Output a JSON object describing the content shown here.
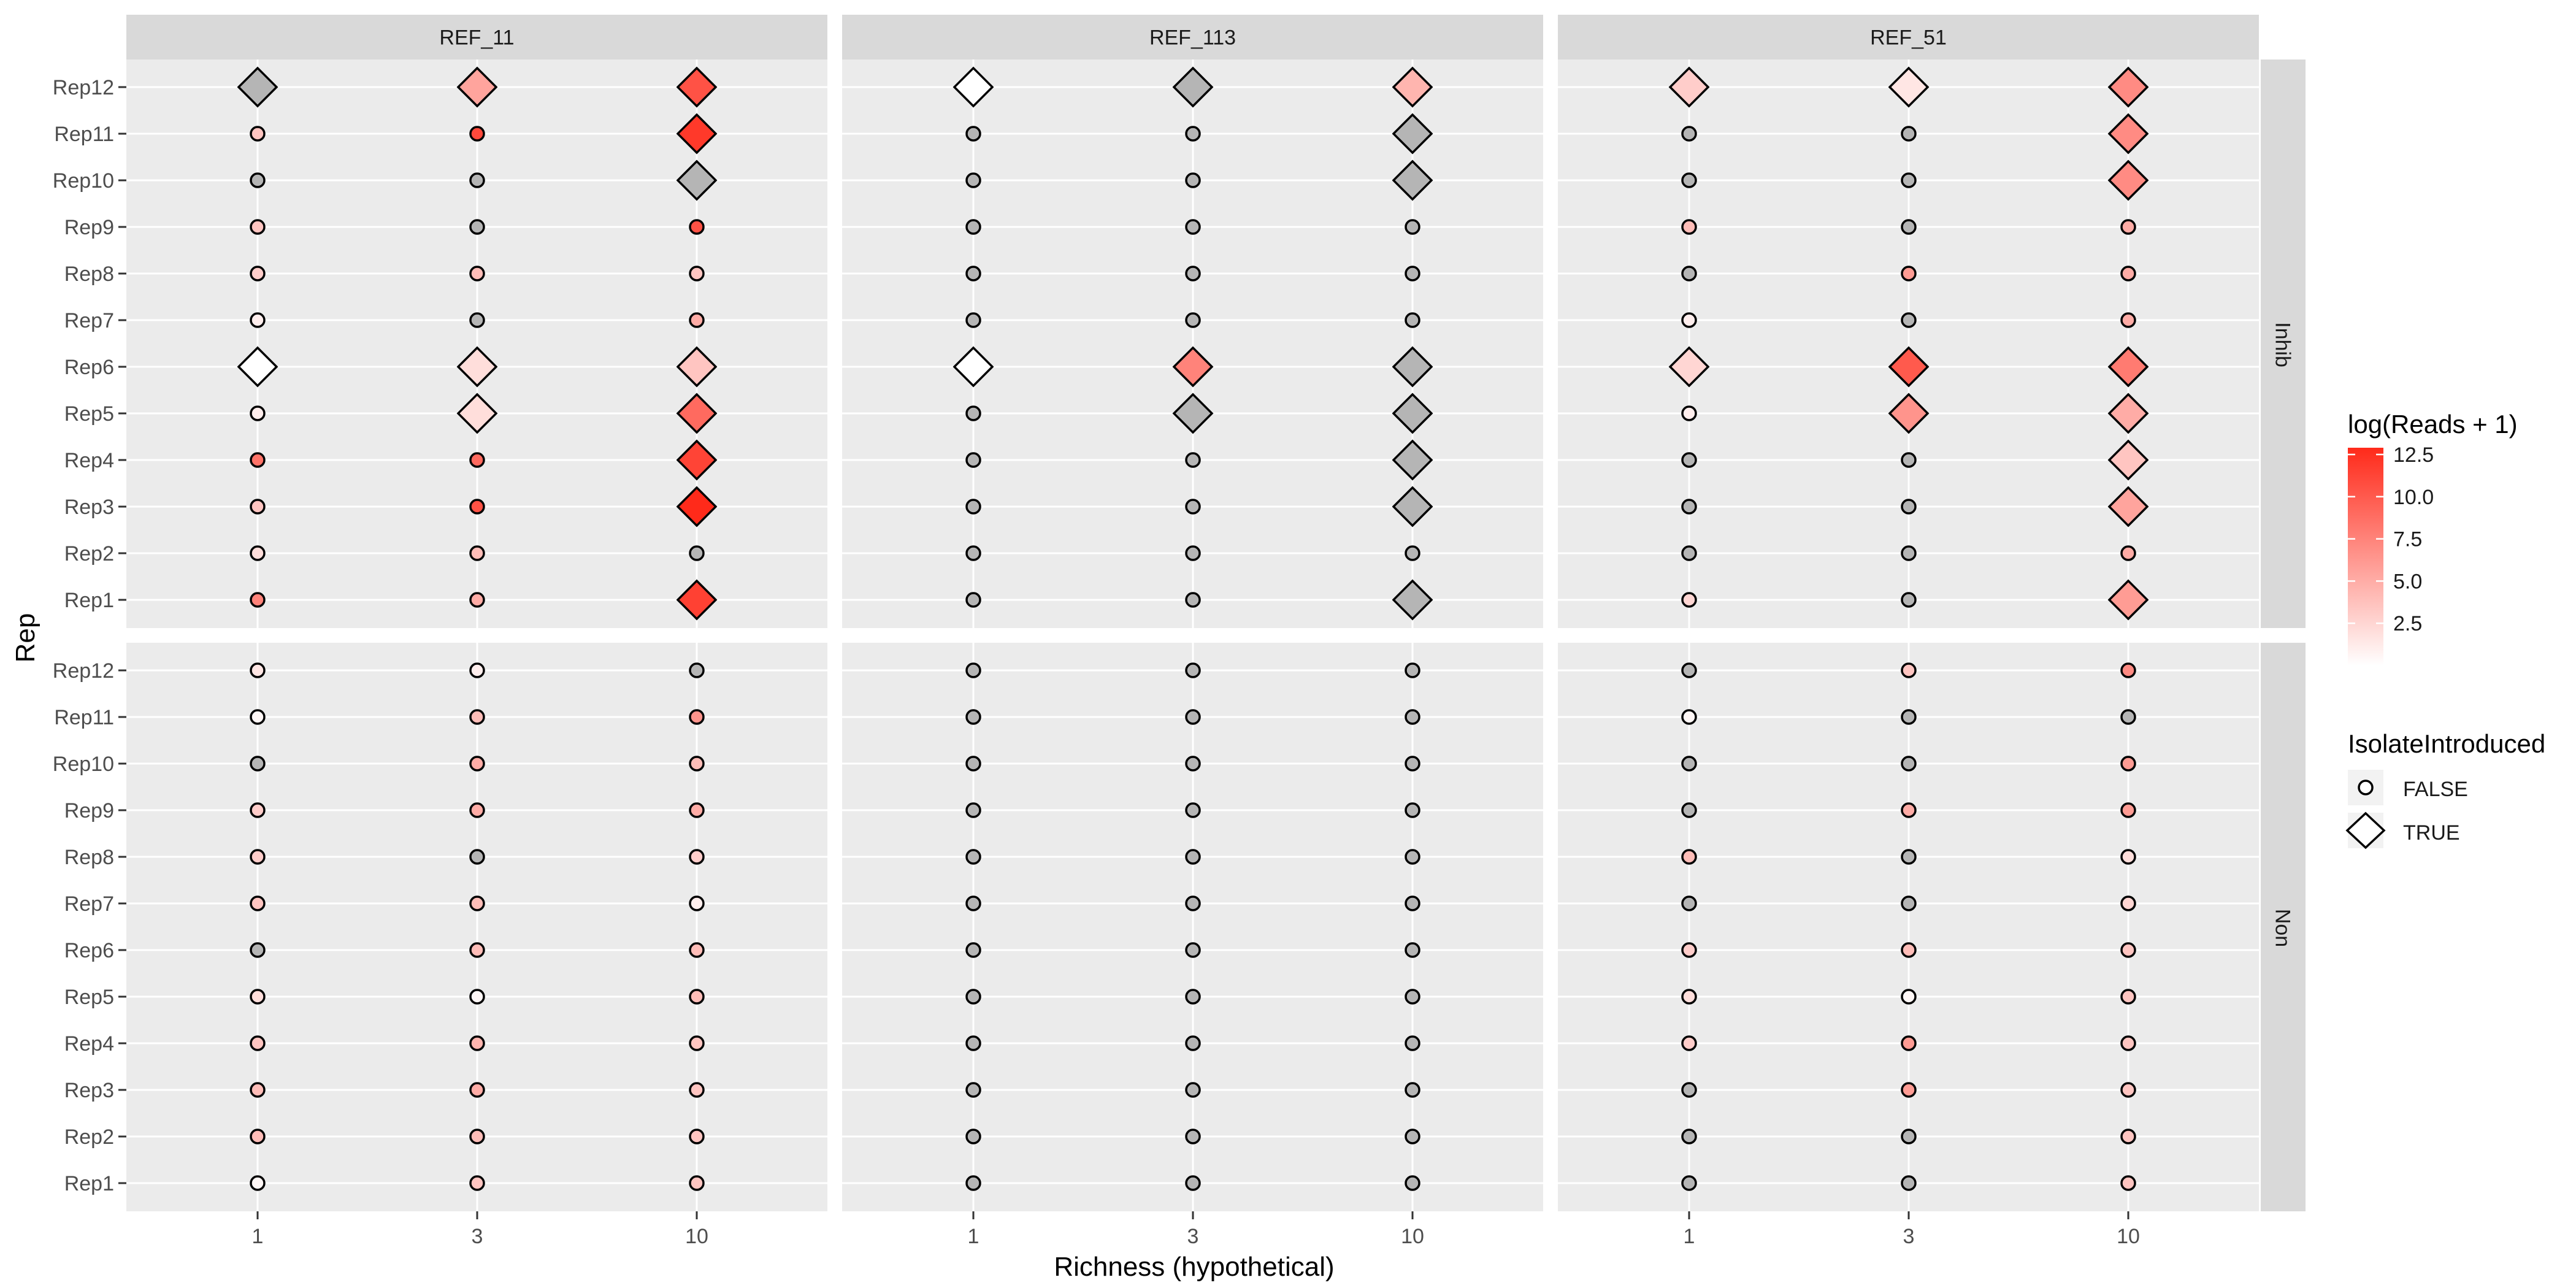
{
  "chart_data": {
    "type": "scatter",
    "xlabel": "Richness (hypothetical)",
    "ylabel": "Rep",
    "x_categories": [
      "1",
      "3",
      "10"
    ],
    "y_categories": [
      "Rep1",
      "Rep2",
      "Rep3",
      "Rep4",
      "Rep5",
      "Rep6",
      "Rep7",
      "Rep8",
      "Rep9",
      "Rep10",
      "Rep11",
      "Rep12"
    ],
    "column_facets": [
      "REF_11",
      "REF_113",
      "REF_51"
    ],
    "row_facets": [
      "Inhib",
      "Non"
    ],
    "legend_color": {
      "title": "log(Reads + 1)",
      "ticks": [
        "2.5",
        "5.0",
        "7.5",
        "10.0",
        "12.5"
      ],
      "tick_values": [
        2.5,
        5.0,
        7.5,
        10.0,
        12.5
      ],
      "limits": [
        0,
        12.9
      ],
      "low_color": "#ffffff",
      "high_color": "#ff2a1a",
      "na_color": "#b5b5b5"
    },
    "legend_shape": {
      "title": "IsolateIntroduced",
      "items": [
        {
          "label": "FALSE",
          "shape": "circle"
        },
        {
          "label": "TRUE",
          "shape": "diamond"
        }
      ]
    },
    "panels": [
      {
        "col": "REF_11",
        "row": "Inhib",
        "reps": [
          [
            7.5,
            5,
            11.5
          ],
          [
            2,
            4,
            null
          ],
          [
            3.5,
            10.5,
            12.9
          ],
          [
            8.5,
            9,
            11.3
          ],
          [
            1,
            2,
            9
          ],
          [
            0,
            2,
            3.5
          ],
          [
            1,
            null,
            5
          ],
          [
            3,
            4,
            3.5
          ],
          [
            3.5,
            null,
            10.5
          ],
          [
            null,
            null,
            null
          ],
          [
            3.5,
            11,
            12
          ],
          [
            null,
            5.5,
            10.5
          ]
        ],
        "introduced": [
          [
            false,
            false,
            true
          ],
          [
            false,
            false,
            false
          ],
          [
            false,
            false,
            true
          ],
          [
            false,
            false,
            true
          ],
          [
            false,
            true,
            true
          ],
          [
            true,
            true,
            true
          ],
          [
            false,
            false,
            false
          ],
          [
            false,
            false,
            false
          ],
          [
            false,
            false,
            false
          ],
          [
            false,
            false,
            true
          ],
          [
            false,
            false,
            true
          ],
          [
            true,
            true,
            true
          ]
        ]
      },
      {
        "col": "REF_113",
        "row": "Inhib",
        "reps": [
          [
            null,
            null,
            null
          ],
          [
            null,
            null,
            null
          ],
          [
            null,
            null,
            null
          ],
          [
            null,
            null,
            null
          ],
          [
            null,
            null,
            null
          ],
          [
            0,
            7.5,
            null
          ],
          [
            null,
            null,
            null
          ],
          [
            null,
            null,
            null
          ],
          [
            null,
            null,
            null
          ],
          [
            null,
            null,
            null
          ],
          [
            null,
            null,
            null
          ],
          [
            0,
            null,
            4.5
          ]
        ],
        "introduced": [
          [
            false,
            false,
            true
          ],
          [
            false,
            false,
            false
          ],
          [
            false,
            false,
            true
          ],
          [
            false,
            false,
            true
          ],
          [
            false,
            true,
            true
          ],
          [
            true,
            true,
            true
          ],
          [
            false,
            false,
            false
          ],
          [
            false,
            false,
            false
          ],
          [
            false,
            false,
            false
          ],
          [
            false,
            false,
            true
          ],
          [
            false,
            false,
            true
          ],
          [
            true,
            true,
            true
          ]
        ]
      },
      {
        "col": "REF_51",
        "row": "Inhib",
        "reps": [
          [
            2.5,
            null,
            6
          ],
          [
            null,
            null,
            5
          ],
          [
            null,
            null,
            5.5
          ],
          [
            null,
            null,
            3.5
          ],
          [
            1,
            6.5,
            5
          ],
          [
            2.5,
            10,
            8
          ],
          [
            1,
            null,
            5
          ],
          [
            null,
            6,
            5
          ],
          [
            4,
            null,
            5
          ],
          [
            null,
            null,
            7
          ],
          [
            null,
            null,
            7
          ],
          [
            3,
            1.5,
            7
          ]
        ],
        "introduced": [
          [
            false,
            false,
            true
          ],
          [
            false,
            false,
            false
          ],
          [
            false,
            false,
            true
          ],
          [
            false,
            false,
            true
          ],
          [
            false,
            true,
            true
          ],
          [
            true,
            true,
            true
          ],
          [
            false,
            false,
            false
          ],
          [
            false,
            false,
            false
          ],
          [
            false,
            false,
            false
          ],
          [
            false,
            false,
            true
          ],
          [
            false,
            false,
            true
          ],
          [
            true,
            true,
            true
          ]
        ]
      },
      {
        "col": "REF_11",
        "row": "Non",
        "reps": [
          [
            0.5,
            3.5,
            3.5
          ],
          [
            4,
            4,
            3.5
          ],
          [
            4,
            5,
            3.5
          ],
          [
            3.5,
            4.5,
            3.5
          ],
          [
            2,
            0.5,
            4
          ],
          [
            null,
            4,
            4
          ],
          [
            3.5,
            4,
            1
          ],
          [
            3,
            null,
            3
          ],
          [
            3,
            5,
            5
          ],
          [
            null,
            5,
            4
          ],
          [
            0.5,
            4,
            6.5
          ],
          [
            1.5,
            1,
            null
          ]
        ],
        "introduced": [
          [
            false,
            false,
            false
          ],
          [
            false,
            false,
            false
          ],
          [
            false,
            false,
            false
          ],
          [
            false,
            false,
            false
          ],
          [
            false,
            false,
            false
          ],
          [
            false,
            false,
            false
          ],
          [
            false,
            false,
            false
          ],
          [
            false,
            false,
            false
          ],
          [
            false,
            false,
            false
          ],
          [
            false,
            false,
            false
          ],
          [
            false,
            false,
            false
          ],
          [
            false,
            false,
            false
          ]
        ]
      },
      {
        "col": "REF_113",
        "row": "Non",
        "reps": [
          [
            null,
            null,
            null
          ],
          [
            null,
            null,
            null
          ],
          [
            null,
            null,
            null
          ],
          [
            null,
            null,
            null
          ],
          [
            null,
            null,
            null
          ],
          [
            null,
            null,
            null
          ],
          [
            null,
            null,
            null
          ],
          [
            null,
            null,
            null
          ],
          [
            null,
            null,
            null
          ],
          [
            null,
            null,
            null
          ],
          [
            null,
            null,
            null
          ],
          [
            null,
            null,
            null
          ]
        ],
        "introduced": [
          [
            false,
            false,
            false
          ],
          [
            false,
            false,
            false
          ],
          [
            false,
            false,
            false
          ],
          [
            false,
            false,
            false
          ],
          [
            false,
            false,
            false
          ],
          [
            false,
            false,
            false
          ],
          [
            false,
            false,
            false
          ],
          [
            false,
            false,
            false
          ],
          [
            false,
            false,
            false
          ],
          [
            false,
            false,
            false
          ],
          [
            false,
            false,
            false
          ],
          [
            false,
            false,
            false
          ]
        ]
      },
      {
        "col": "REF_51",
        "row": "Non",
        "reps": [
          [
            null,
            null,
            3.5
          ],
          [
            null,
            null,
            3.5
          ],
          [
            null,
            6,
            3.5
          ],
          [
            3,
            6,
            3.5
          ],
          [
            2,
            0.5,
            3.5
          ],
          [
            3,
            4,
            3.5
          ],
          [
            null,
            null,
            2.5
          ],
          [
            4,
            null,
            2
          ],
          [
            null,
            5,
            6
          ],
          [
            null,
            null,
            6
          ],
          [
            0.5,
            null,
            null
          ],
          [
            null,
            3.5,
            7
          ]
        ],
        "introduced": [
          [
            false,
            false,
            false
          ],
          [
            false,
            false,
            false
          ],
          [
            false,
            false,
            false
          ],
          [
            false,
            false,
            false
          ],
          [
            false,
            false,
            false
          ],
          [
            false,
            false,
            false
          ],
          [
            false,
            false,
            false
          ],
          [
            false,
            false,
            false
          ],
          [
            false,
            false,
            false
          ],
          [
            false,
            false,
            false
          ],
          [
            false,
            false,
            false
          ],
          [
            false,
            false,
            false
          ]
        ]
      }
    ]
  }
}
